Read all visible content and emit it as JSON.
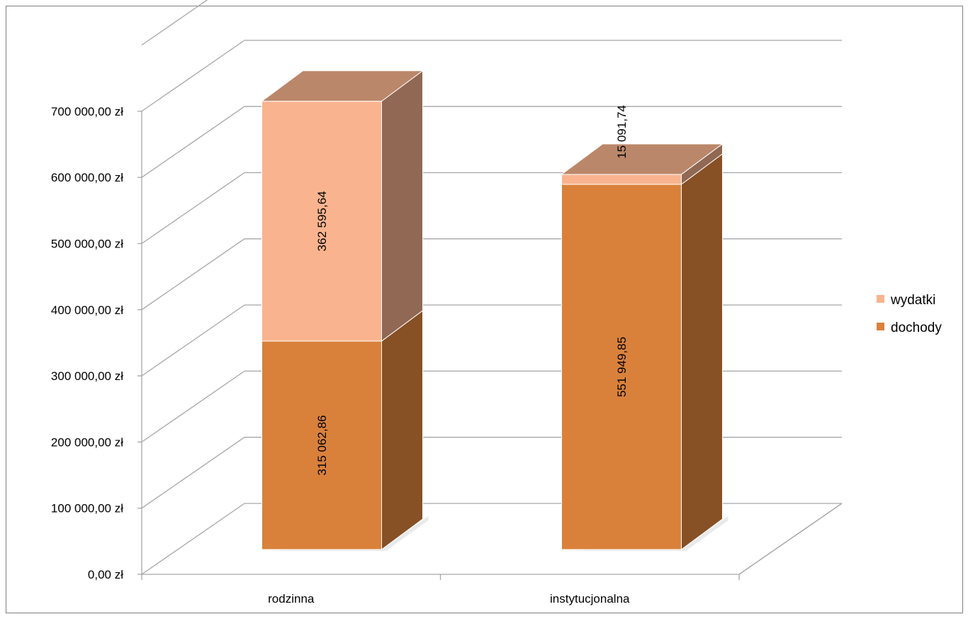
{
  "chart_data": {
    "type": "bar",
    "stacked": true,
    "three_d": true,
    "categories": [
      "rodzinna",
      "instytucjonalna"
    ],
    "series": [
      {
        "name": "dochody",
        "values": [
          315062.86,
          551949.85
        ],
        "labels": [
          "315 062,86",
          "551 949,85"
        ],
        "color": "#d9813b"
      },
      {
        "name": "wydatki",
        "values": [
          362595.64,
          15091.74
        ],
        "labels": [
          "362 595,64",
          "15 091,74"
        ],
        "color": "#f9b48f"
      }
    ],
    "y_ticks": [
      "0,00 zł",
      "100 000,00 zł",
      "200 000,00 zł",
      "300 000,00 zł",
      "400 000,00 zł",
      "500 000,00 zł",
      "600 000,00 zł",
      "700 000,00 zł"
    ],
    "ylim": [
      0,
      800000
    ],
    "ytick_step": 100000,
    "grid": true,
    "legend_position": "right",
    "legend_order": [
      "wydatki",
      "dochody"
    ]
  }
}
